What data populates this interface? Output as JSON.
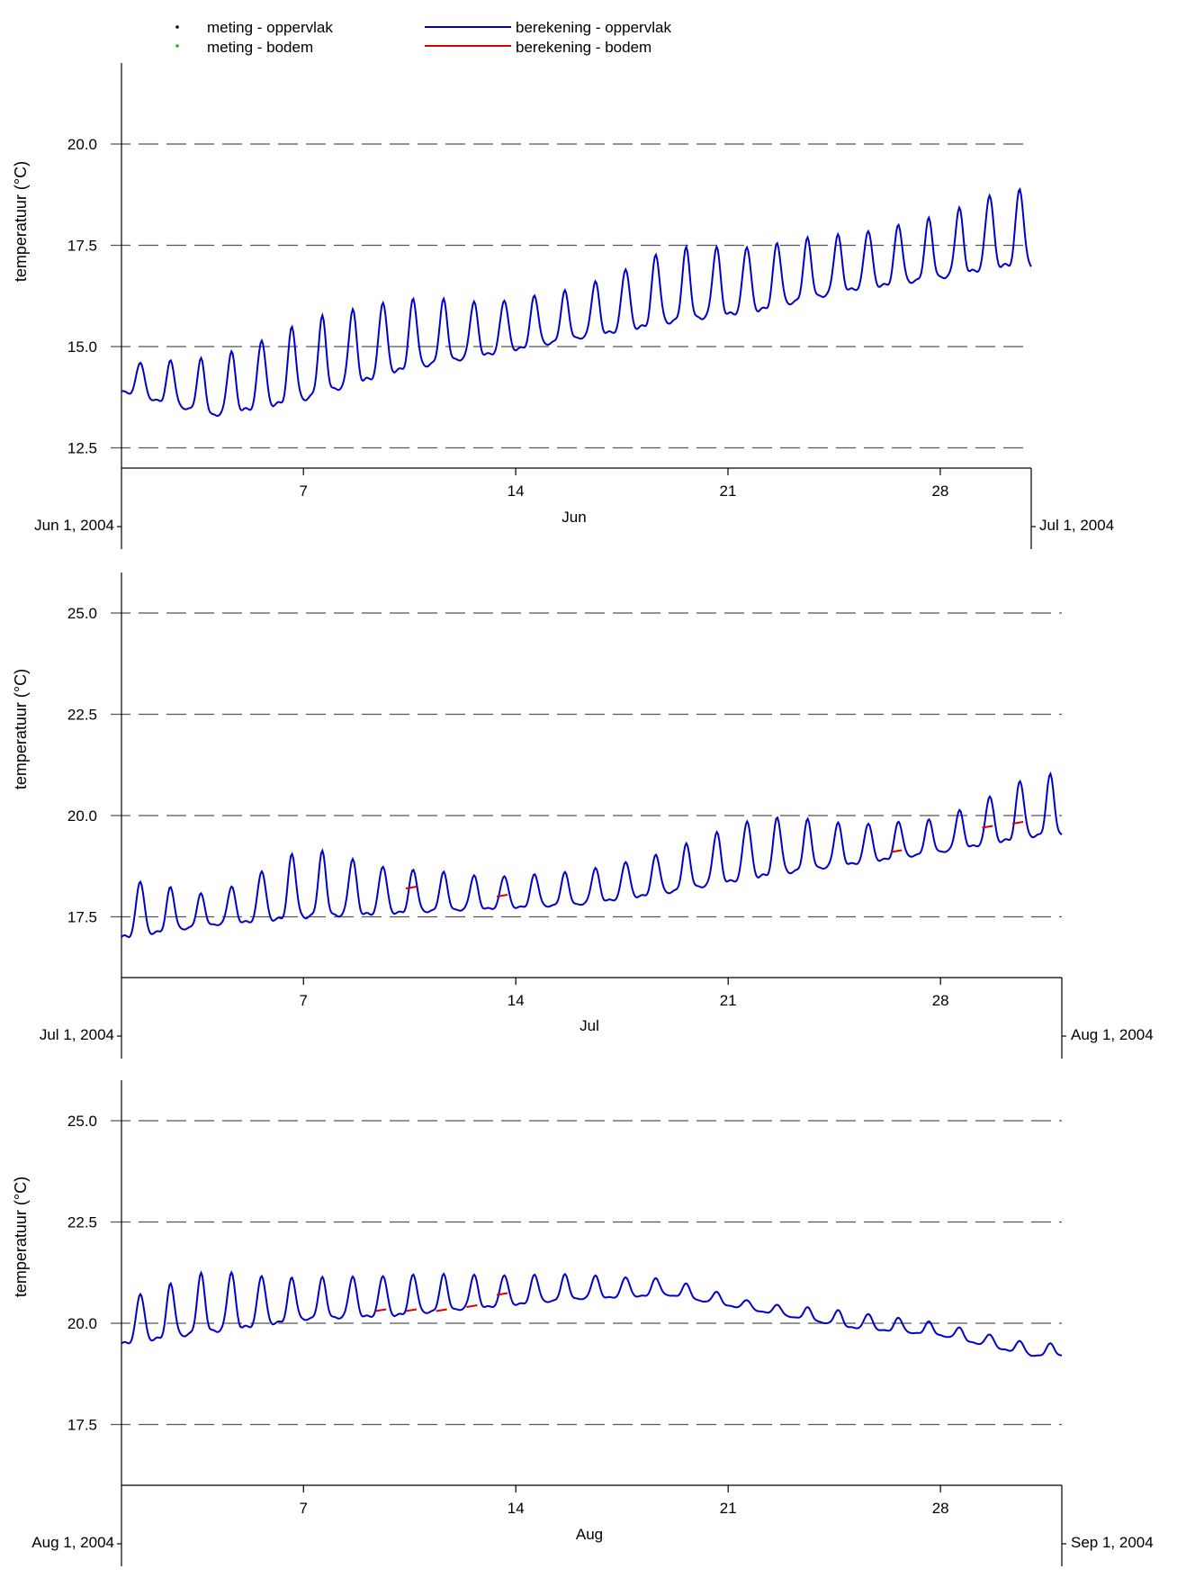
{
  "legend": {
    "items": [
      {
        "label": "meting - oppervlak",
        "kind": "marker",
        "color": "#000000"
      },
      {
        "label": "meting - bodem",
        "kind": "marker",
        "color": "#00cc00"
      },
      {
        "label": "berekening - oppervlak",
        "kind": "line",
        "color": "#0000cc"
      },
      {
        "label": "berekening - bodem",
        "kind": "line",
        "color": "#dd0000"
      }
    ]
  },
  "colors": {
    "oppervlak": "#0000cc",
    "bodem": "#dd0000",
    "gridline": "#555555",
    "axis": "#000000"
  },
  "chart_data": [
    {
      "type": "line",
      "ylabel": "temperatuur (°C)",
      "xlabel": "Jun",
      "x_start_label": "Jun 1, 2004",
      "x_end_label": "Jul 1, 2004",
      "xlim": [
        "2004-06-01",
        "2004-07-01"
      ],
      "ylim": [
        12.0,
        22.0
      ],
      "yticks": [
        12.5,
        15.0,
        17.5,
        20.0
      ],
      "ytick_labels": [
        "12.5",
        "15.0",
        "17.5",
        "20.0"
      ],
      "xticks": [
        7,
        14,
        21,
        28
      ],
      "xtick_labels": [
        "7",
        "14",
        "21",
        "28"
      ],
      "grid": "horizontal dashed",
      "series": [
        {
          "name": "berekening - oppervlak",
          "x": [
            "2004-06-01",
            "2004-06-04",
            "2004-06-07",
            "2004-06-10",
            "2004-06-13",
            "2004-06-16",
            "2004-06-19",
            "2004-06-22",
            "2004-06-25",
            "2004-06-28",
            "2004-06-30"
          ],
          "daily_min": [
            13.9,
            13.3,
            13.7,
            14.4,
            14.8,
            15.2,
            15.6,
            15.9,
            16.4,
            16.7,
            17.0
          ],
          "daily_max": [
            14.6,
            14.7,
            15.6,
            16.2,
            16.1,
            16.4,
            17.4,
            17.5,
            17.8,
            18.2,
            18.9
          ]
        },
        {
          "name": "berekening - bodem",
          "x": [],
          "values": []
        }
      ]
    },
    {
      "type": "line",
      "ylabel": "temperatuur (°C)",
      "xlabel": "Jul",
      "x_start_label": "Jul 1, 2004",
      "x_end_label": "Aug 1, 2004",
      "xlim": [
        "2004-07-01",
        "2004-08-01"
      ],
      "ylim": [
        16.0,
        26.0
      ],
      "yticks": [
        17.5,
        20.0,
        22.5,
        25.0
      ],
      "ytick_labels": [
        "17.5",
        "20.0",
        "22.5",
        "25.0"
      ],
      "xticks": [
        7,
        14,
        21,
        28
      ],
      "xtick_labels": [
        "7",
        "14",
        "21",
        "28"
      ],
      "grid": "horizontal dashed",
      "series": [
        {
          "name": "berekening - oppervlak",
          "x": [
            "2004-07-01",
            "2004-07-04",
            "2004-07-07",
            "2004-07-10",
            "2004-07-13",
            "2004-07-16",
            "2004-07-19",
            "2004-07-22",
            "2004-07-25",
            "2004-07-28",
            "2004-07-31"
          ],
          "daily_min": [
            17.0,
            17.3,
            17.5,
            17.6,
            17.7,
            17.8,
            18.1,
            18.5,
            18.8,
            19.1,
            19.5
          ],
          "daily_max": [
            18.5,
            18.0,
            19.2,
            18.7,
            18.5,
            18.6,
            19.1,
            20.0,
            19.8,
            19.9,
            21.0
          ]
        },
        {
          "name": "berekening - bodem",
          "x": [
            "2004-07-10",
            "2004-07-13",
            "2004-07-26",
            "2004-07-29",
            "2004-07-30"
          ],
          "values": [
            18.2,
            18.0,
            19.1,
            19.7,
            19.8
          ]
        }
      ]
    },
    {
      "type": "line",
      "ylabel": "temperatuur (°C)",
      "xlabel": "Aug",
      "x_start_label": "Aug 1, 2004",
      "x_end_label": "Sep 1, 2004",
      "xlim": [
        "2004-08-01",
        "2004-09-01"
      ],
      "ylim": [
        16.0,
        26.0
      ],
      "yticks": [
        17.5,
        20.0,
        22.5,
        25.0
      ],
      "ytick_labels": [
        "17.5",
        "20.0",
        "22.5",
        "25.0"
      ],
      "xticks": [
        7,
        14,
        21,
        28
      ],
      "xtick_labels": [
        "7",
        "14",
        "21",
        "28"
      ],
      "grid": "horizontal dashed",
      "series": [
        {
          "name": "berekening - oppervlak",
          "x": [
            "2004-08-01",
            "2004-08-04",
            "2004-08-07",
            "2004-08-10",
            "2004-08-13",
            "2004-08-16",
            "2004-08-19",
            "2004-08-22",
            "2004-08-25",
            "2004-08-28",
            "2004-08-31"
          ],
          "daily_min": [
            19.5,
            19.8,
            20.1,
            20.2,
            20.4,
            20.6,
            20.7,
            20.3,
            19.9,
            19.7,
            19.2
          ],
          "daily_max": [
            20.6,
            21.3,
            21.1,
            21.2,
            21.2,
            21.2,
            21.1,
            20.5,
            20.3,
            20.0,
            19.5
          ]
        },
        {
          "name": "berekening - bodem",
          "x": [
            "2004-08-09",
            "2004-08-10",
            "2004-08-11",
            "2004-08-12",
            "2004-08-13"
          ],
          "values": [
            20.3,
            20.3,
            20.3,
            20.4,
            20.7
          ]
        }
      ]
    }
  ]
}
